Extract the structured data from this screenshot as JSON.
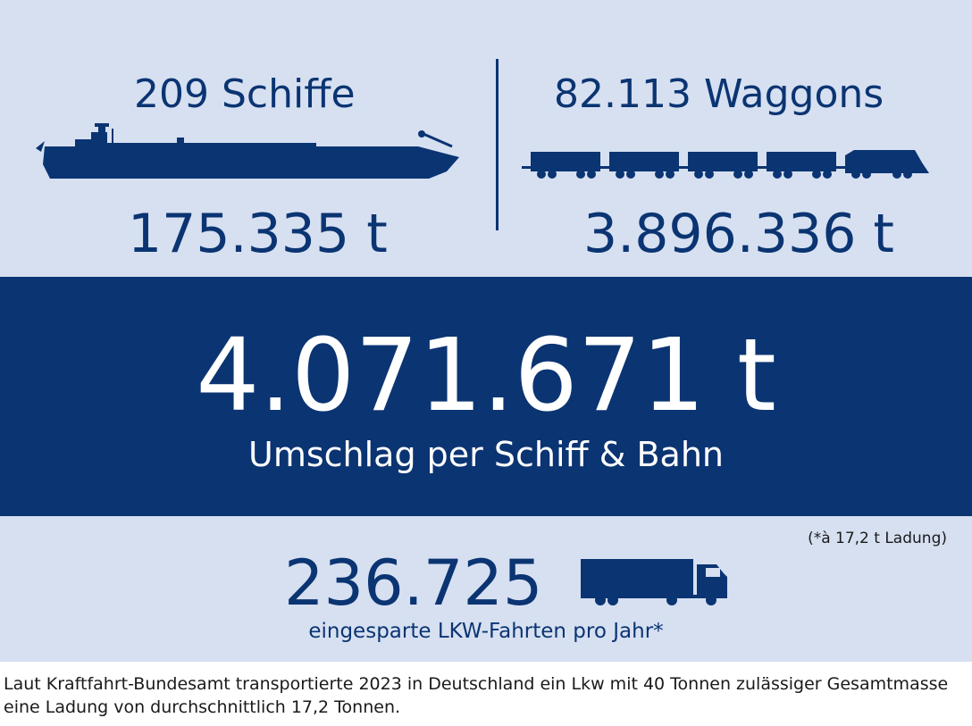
{
  "ship": {
    "count_label": "209 Schiffe",
    "tonnage": "175.335 t",
    "icon": "ship-icon"
  },
  "rail": {
    "count_label": "82.113 Waggons",
    "tonnage": "3.896.336 t",
    "icon": "train-icon"
  },
  "total": {
    "value": "4.071.671 t",
    "caption": "Umschlag per Schiff & Bahn"
  },
  "trucks": {
    "value": "236.725",
    "caption": "eingesparte LKW-Fahrten pro Jahr*",
    "footnote_marker": "(*à 17,2 t Ladung)",
    "icon": "truck-icon"
  },
  "note": "Laut Kraftfahrt-Bundesamt transportierte 2023 in Deutschland ein Lkw mit 40 Tonnen zulässiger Gesamtmasse eine Ladung von durchschnittlich 17,2 Tonnen.",
  "colors": {
    "navy": "#0b3472",
    "light_panel": "#d6e0f1",
    "white": "#ffffff"
  }
}
